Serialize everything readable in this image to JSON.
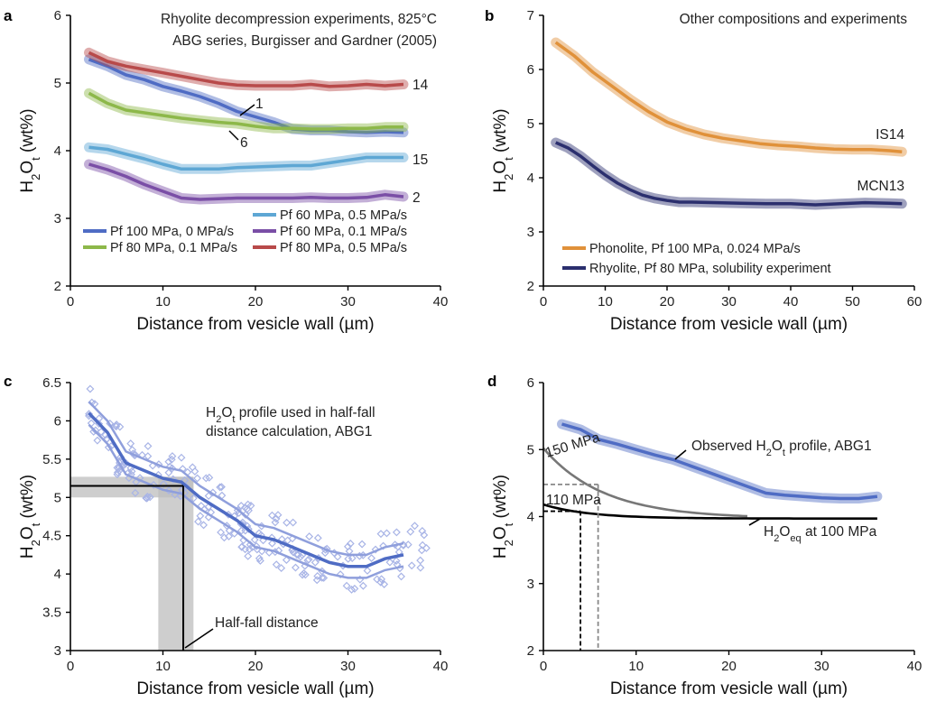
{
  "chart_data": [
    {
      "panel": "a",
      "type": "line",
      "title": "Rhyolite decompression experiments, 825°C",
      "subtitle": "ABG series, Burgisser and Gardner (2005)",
      "xlabel": "Distance from vesicle wall (µm)",
      "ylabel_main": "H",
      "ylabel_sub1": "2",
      "ylabel_mid": "O",
      "ylabel_sub2": "t",
      "ylabel_tail": " (wt%)",
      "xlim": [
        0,
        40
      ],
      "ylim": [
        2,
        6
      ],
      "xticks": [
        "0",
        "10",
        "20",
        "30",
        "40"
      ],
      "yticks": [
        "2",
        "3",
        "4",
        "5",
        "6"
      ],
      "series": [
        {
          "name": "Pf 100 MPa, 0 MPa/s",
          "end_label": "1",
          "color": "#4f6cc4",
          "x": [
            2,
            4,
            6,
            8,
            10,
            12,
            14,
            16,
            18,
            20,
            22,
            24,
            26,
            28,
            30,
            32,
            34,
            36
          ],
          "y": [
            5.35,
            5.25,
            5.12,
            5.05,
            4.95,
            4.88,
            4.8,
            4.7,
            4.58,
            4.5,
            4.42,
            4.32,
            4.3,
            4.3,
            4.28,
            4.27,
            4.28,
            4.27
          ]
        },
        {
          "name": "Pf 80 MPa, 0.1 MPa/s",
          "end_label": "6",
          "color": "#8db84a",
          "x": [
            2,
            4,
            6,
            8,
            10,
            12,
            14,
            16,
            18,
            20,
            22,
            24,
            26,
            28,
            30,
            32,
            34,
            36
          ],
          "y": [
            4.85,
            4.7,
            4.6,
            4.56,
            4.52,
            4.48,
            4.45,
            4.42,
            4.4,
            4.36,
            4.33,
            4.33,
            4.32,
            4.32,
            4.33,
            4.33,
            4.35,
            4.35
          ]
        },
        {
          "name": "Pf 60 MPa, 0.5 MPa/s",
          "end_label": "15",
          "color": "#5ea7d4",
          "x": [
            2,
            4,
            6,
            8,
            10,
            12,
            14,
            16,
            18,
            20,
            22,
            24,
            26,
            28,
            30,
            32,
            34,
            36
          ],
          "y": [
            4.05,
            4.02,
            3.95,
            3.88,
            3.8,
            3.73,
            3.73,
            3.73,
            3.75,
            3.76,
            3.77,
            3.78,
            3.78,
            3.82,
            3.86,
            3.9,
            3.9,
            3.9
          ]
        },
        {
          "name": "Pf 60 MPa, 0.1 MPa/s",
          "end_label": "2",
          "color": "#7a4ea6",
          "x": [
            2,
            4,
            6,
            8,
            10,
            12,
            14,
            16,
            18,
            20,
            22,
            24,
            26,
            28,
            30,
            32,
            34,
            36
          ],
          "y": [
            3.8,
            3.72,
            3.62,
            3.5,
            3.4,
            3.3,
            3.28,
            3.29,
            3.3,
            3.3,
            3.3,
            3.3,
            3.31,
            3.3,
            3.3,
            3.31,
            3.35,
            3.32
          ]
        },
        {
          "name": "Pf 80 MPa, 0.5 MPa/s",
          "end_label": "14",
          "color": "#b84a4a",
          "x": [
            2,
            4,
            6,
            8,
            10,
            12,
            14,
            16,
            18,
            20,
            22,
            24,
            26,
            28,
            30,
            32,
            34,
            36
          ],
          "y": [
            5.45,
            5.32,
            5.25,
            5.2,
            5.15,
            5.1,
            5.05,
            5.0,
            4.97,
            4.96,
            4.96,
            4.96,
            4.98,
            4.95,
            4.96,
            4.98,
            4.96,
            4.98
          ]
        }
      ],
      "legend_order": [
        2,
        0,
        3,
        1,
        4
      ]
    },
    {
      "panel": "b",
      "type": "line",
      "title": "Other compositions and experiments",
      "xlabel": "Distance from vesicle wall (µm)",
      "xlim": [
        0,
        60
      ],
      "ylim": [
        2,
        7
      ],
      "xticks": [
        "0",
        "10",
        "20",
        "30",
        "40",
        "50",
        "60"
      ],
      "yticks": [
        "2",
        "3",
        "4",
        "5",
        "6",
        "7"
      ],
      "series": [
        {
          "name": "Phonolite, Pf 100 MPa, 0.024 MPa/s",
          "end_label": "IS14",
          "color": "#e0913a",
          "x": [
            2,
            5,
            8,
            11,
            14,
            17,
            20,
            23,
            26,
            29,
            32,
            35,
            38,
            41,
            44,
            47,
            50,
            53,
            56,
            58
          ],
          "y": [
            6.5,
            6.25,
            5.95,
            5.7,
            5.45,
            5.22,
            5.03,
            4.9,
            4.8,
            4.73,
            4.68,
            4.63,
            4.6,
            4.58,
            4.55,
            4.53,
            4.52,
            4.52,
            4.5,
            4.48
          ]
        },
        {
          "name": "Rhyolite, Pf 80 MPa, solubility experiment",
          "end_label": "MCN13",
          "color": "#2b2f6e",
          "x": [
            2,
            4,
            6,
            8,
            10,
            12,
            14,
            16,
            18,
            20,
            22,
            24,
            28,
            32,
            36,
            40,
            44,
            48,
            52,
            56,
            58
          ],
          "y": [
            4.65,
            4.55,
            4.4,
            4.22,
            4.05,
            3.9,
            3.78,
            3.68,
            3.62,
            3.58,
            3.55,
            3.55,
            3.54,
            3.53,
            3.52,
            3.52,
            3.5,
            3.52,
            3.54,
            3.53,
            3.52
          ]
        }
      ]
    },
    {
      "panel": "c",
      "type": "scatter",
      "title_parts": [
        "H",
        "2",
        "O",
        "t",
        " profile used in half-fall"
      ],
      "title_line2": "distance calculation, ABG1",
      "xlabel": "Distance from vesicle wall (µm)",
      "xlim": [
        0,
        40
      ],
      "ylim": [
        3,
        6.5
      ],
      "xticks": [
        "0",
        "10",
        "20",
        "30",
        "40"
      ],
      "yticks": [
        "3",
        "3.5",
        "4",
        "4.5",
        "5",
        "5.5",
        "6",
        "6.5"
      ],
      "profile": {
        "x": [
          2,
          4,
          6,
          8,
          10,
          12,
          14,
          16,
          18,
          20,
          22,
          24,
          26,
          28,
          30,
          32,
          34,
          36
        ],
        "y": [
          6.1,
          5.85,
          5.45,
          5.35,
          5.25,
          5.2,
          5.0,
          4.85,
          4.7,
          4.5,
          4.45,
          4.35,
          4.25,
          4.15,
          4.1,
          4.1,
          4.2,
          4.25
        ],
        "band": 0.15
      },
      "half_fall": {
        "x": 12.2,
        "y": 5.15,
        "x_lo": 9.5,
        "x_hi": 13.3,
        "y_lo": 5.0,
        "y_hi": 5.27
      },
      "annotation": "Half-fall distance"
    },
    {
      "panel": "d",
      "type": "line",
      "xlabel": "Distance from vesicle wall (µm)",
      "xlim": [
        0,
        40
      ],
      "ylim": [
        2,
        6
      ],
      "xticks": [
        "0",
        "10",
        "20",
        "30",
        "40"
      ],
      "yticks": [
        "2",
        "3",
        "4",
        "5",
        "6"
      ],
      "observed": {
        "label_parts": [
          "Observed H",
          "2",
          "O",
          "t",
          " profile, ABG1"
        ],
        "color": "#4f6cc4",
        "x": [
          2,
          4,
          6,
          8,
          10,
          12,
          14,
          16,
          18,
          20,
          22,
          24,
          26,
          28,
          30,
          32,
          34,
          36
        ],
        "y": [
          5.38,
          5.3,
          5.15,
          5.08,
          5.0,
          4.92,
          4.85,
          4.75,
          4.65,
          4.55,
          4.45,
          4.35,
          4.32,
          4.3,
          4.28,
          4.27,
          4.27,
          4.3
        ]
      },
      "eq_150": {
        "label": "150 MPa",
        "color": "#777777",
        "start": 5.02,
        "plateau": 3.97,
        "scale": 6.5
      },
      "eq_110": {
        "label": "110 MPa",
        "color": "#000000",
        "start": 4.18,
        "plateau": 3.97,
        "scale": 5.0
      },
      "eq_label_parts": [
        "H",
        "2",
        "O",
        "eq",
        " at 100 MPa"
      ],
      "plateau_line_end": 36,
      "dashed_110": {
        "x": 4.0,
        "y": 4.08
      },
      "dashed_150": {
        "x": 5.9,
        "y": 4.48
      }
    }
  ]
}
